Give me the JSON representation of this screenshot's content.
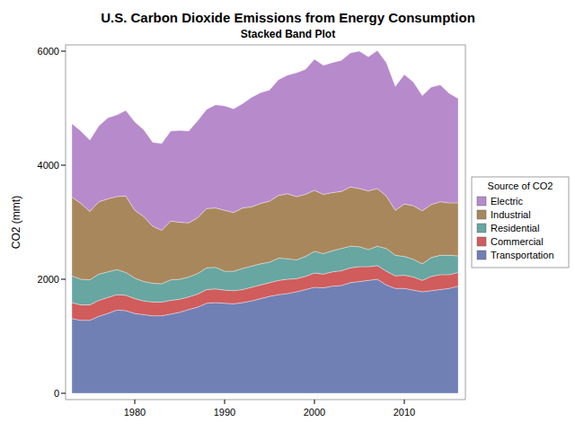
{
  "chart_data": {
    "type": "area",
    "stacked": true,
    "title": "U.S. Carbon Dioxide Emissions from Energy Consumption",
    "subtitle": "Stacked Band Plot",
    "y_label": "CO2 (mmt)",
    "legend": "right",
    "legend_title": "Source of CO2",
    "x": [
      1973,
      1974,
      1975,
      1976,
      1977,
      1978,
      1979,
      1980,
      1981,
      1982,
      1983,
      1984,
      1985,
      1986,
      1987,
      1988,
      1989,
      1990,
      1991,
      1992,
      1993,
      1994,
      1995,
      1996,
      1997,
      1998,
      1999,
      2000,
      2001,
      2002,
      2003,
      2004,
      2005,
      2006,
      2007,
      2008,
      2009,
      2010,
      2011,
      2012,
      2013,
      2014,
      2015,
      2016
    ],
    "xlim": [
      1972.3,
      2016.8
    ],
    "xticks": [
      1980,
      1990,
      2000,
      2010
    ],
    "ylim": [
      -110,
      6110
    ],
    "yticks": [
      0,
      2000,
      4000,
      6000
    ],
    "series": [
      {
        "name": "Transportation",
        "color": "#7080b4",
        "values": [
          1310,
          1280,
          1280,
          1350,
          1400,
          1460,
          1450,
          1400,
          1380,
          1360,
          1360,
          1390,
          1420,
          1470,
          1510,
          1580,
          1590,
          1580,
          1570,
          1590,
          1620,
          1660,
          1700,
          1730,
          1750,
          1780,
          1820,
          1860,
          1850,
          1880,
          1890,
          1940,
          1960,
          1980,
          2000,
          1900,
          1840,
          1840,
          1810,
          1780,
          1800,
          1820,
          1840,
          1880
        ]
      },
      {
        "name": "Commercial",
        "color": "#d05c5c",
        "values": [
          280,
          270,
          270,
          280,
          280,
          270,
          270,
          260,
          240,
          240,
          240,
          240,
          230,
          220,
          230,
          240,
          240,
          230,
          230,
          230,
          240,
          240,
          240,
          250,
          250,
          230,
          230,
          250,
          240,
          250,
          260,
          260,
          260,
          240,
          240,
          240,
          220,
          230,
          230,
          200,
          250,
          260,
          240,
          240
        ]
      },
      {
        "name": "Residential",
        "color": "#67a6a1",
        "values": [
          470,
          450,
          440,
          460,
          450,
          440,
          400,
          360,
          340,
          330,
          320,
          360,
          350,
          350,
          360,
          380,
          380,
          330,
          340,
          370,
          370,
          370,
          360,
          390,
          360,
          330,
          350,
          380,
          360,
          370,
          390,
          380,
          350,
          300,
          340,
          400,
          360,
          330,
          310,
          290,
          330,
          340,
          340,
          290
        ]
      },
      {
        "name": "Industrial",
        "color": "#a9875c",
        "values": [
          1380,
          1330,
          1200,
          1270,
          1280,
          1280,
          1340,
          1190,
          1140,
          1000,
          940,
          1030,
          1000,
          950,
          980,
          1040,
          1040,
          1070,
          1030,
          1060,
          1040,
          1060,
          1070,
          1100,
          1140,
          1110,
          1090,
          1070,
          1040,
          1020,
          1000,
          1040,
          1020,
          1030,
          1010,
          920,
          790,
          920,
          940,
          930,
          930,
          940,
          920,
          930
        ]
      },
      {
        "name": "Electric",
        "color": "#b78acc",
        "values": [
          1290,
          1270,
          1250,
          1330,
          1420,
          1430,
          1500,
          1550,
          1520,
          1470,
          1520,
          1580,
          1610,
          1610,
          1700,
          1740,
          1810,
          1830,
          1820,
          1830,
          1920,
          1940,
          1950,
          2030,
          2080,
          2170,
          2190,
          2300,
          2260,
          2280,
          2300,
          2350,
          2410,
          2350,
          2420,
          2340,
          2170,
          2270,
          2170,
          2020,
          2060,
          2050,
          1920,
          1830
        ]
      }
    ]
  }
}
